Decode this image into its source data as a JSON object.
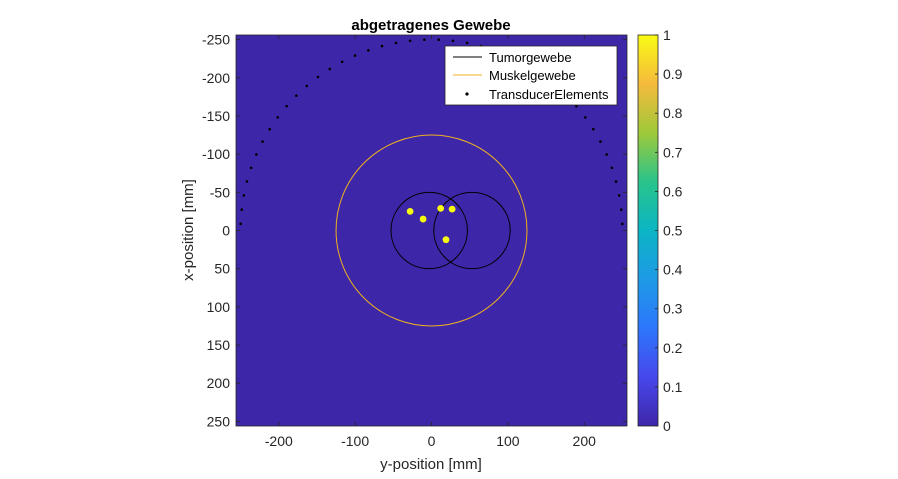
{
  "chart_data": {
    "type": "heatmap",
    "title": "abgetragenes Gewebe",
    "xlabel": "y-position [mm]",
    "ylabel": "x-position [mm]",
    "xlim": [
      -256,
      256
    ],
    "ylim": [
      -256,
      256
    ],
    "y_reversed": true,
    "xticks": [
      -200,
      -100,
      0,
      100,
      200
    ],
    "yticks": [
      -250,
      -200,
      -150,
      -100,
      -50,
      0,
      50,
      100,
      150,
      200,
      250
    ],
    "background_value": 0,
    "colormap": "parula",
    "colorbar": {
      "ticks": [
        0,
        0.1,
        0.2,
        0.3,
        0.4,
        0.5,
        0.6,
        0.7,
        0.8,
        0.9,
        1
      ],
      "range": [
        0,
        1
      ]
    },
    "legend": {
      "position": "top-right",
      "entries": [
        "Tumorgewebe",
        "Muskelgewebe",
        "TransducerElements"
      ]
    },
    "series": [
      {
        "name": "Tumorgewebe",
        "kind": "outline",
        "color": "#000000",
        "circles": [
          {
            "center_y": -3,
            "center_x": 0,
            "radius": 50
          },
          {
            "center_y": 53,
            "center_x": 0,
            "radius": 50
          }
        ]
      },
      {
        "name": "Muskelgewebe",
        "kind": "outline",
        "color": "#EDB120",
        "circles": [
          {
            "center_y": 0,
            "center_x": 0,
            "radius": 125
          }
        ]
      },
      {
        "name": "TransducerElements",
        "kind": "points",
        "color": "#000000",
        "arc": {
          "radius": 250,
          "angle_from_deg": -88,
          "angle_to_deg": 88,
          "count": 42
        }
      }
    ],
    "ablated_spots": {
      "value": 1,
      "color": "#F9FB0E",
      "points": [
        {
          "y": -28,
          "x": -25
        },
        {
          "y": -11,
          "x": -15
        },
        {
          "y": 12,
          "x": -29
        },
        {
          "y": 27,
          "x": -28
        },
        {
          "y": 19,
          "x": 12
        }
      ]
    }
  }
}
